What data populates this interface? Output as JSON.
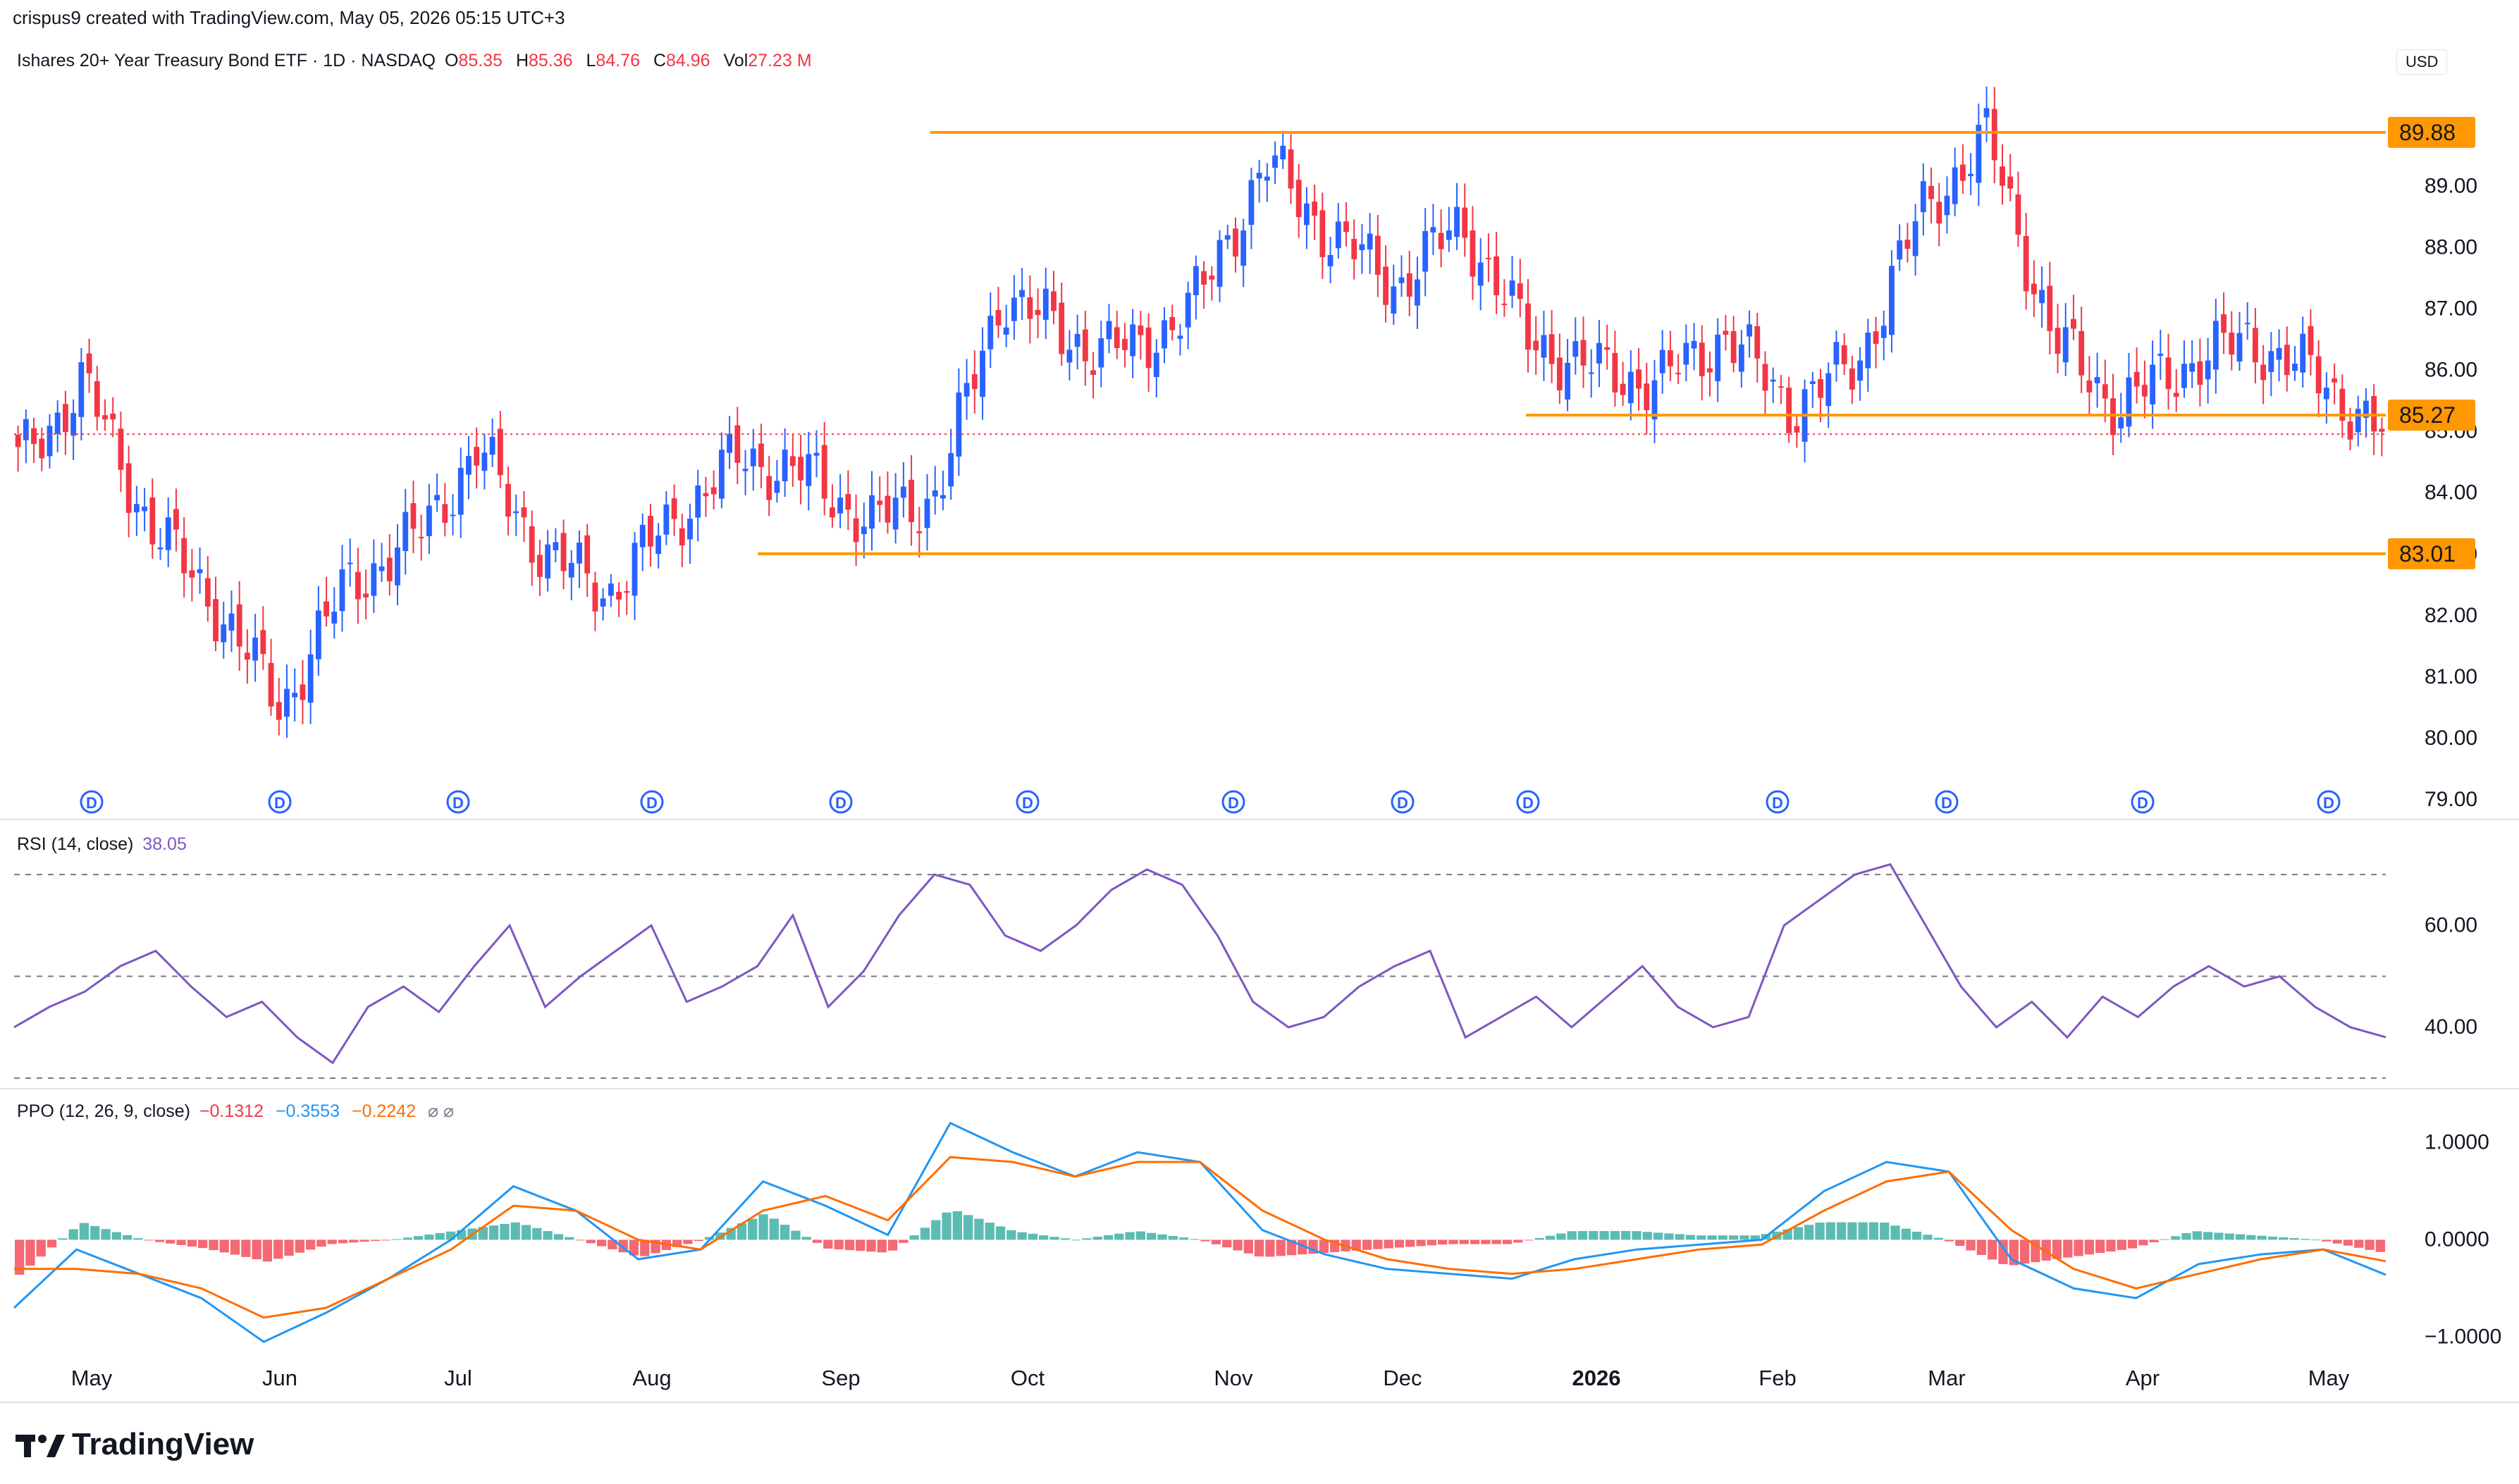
{
  "header": {
    "creator_line": "crispus9 created with TradingView.com, May 05, 2026 05:15 UTC+3"
  },
  "currency": "USD",
  "ohlc": {
    "symbol": "Ishares 20+ Year Treasury Bond ETF · 1D · NASDAQ",
    "O": "85.35",
    "H": "85.36",
    "L": "84.76",
    "C": "84.96",
    "Vol": "27.23 M"
  },
  "rsi_legend": {
    "label": "RSI (14, close)",
    "value": "38.05"
  },
  "ppo_legend": {
    "label": "PPO (12, 26, 9, close)",
    "v1": "−0.1312",
    "v2": "−0.3553",
    "v3": "−0.2242"
  },
  "brand": "TradingView",
  "colors": {
    "up": "#2962ff",
    "down": "#f23645",
    "level": "#ff9800",
    "rsi": "#7e57c2",
    "ppo": "#2196f3",
    "signal": "#ff6d00",
    "hist_up": "#26a69a",
    "hist_down": "#f23645"
  },
  "chart_data": [
    {
      "type": "candlestick",
      "price_axis_ticks": [
        "89.00",
        "88.00",
        "87.00",
        "86.00",
        "85.00",
        "84.00",
        "83.00",
        "82.00",
        "81.00",
        "80.00",
        "79.00"
      ],
      "ylim": [
        79,
        90.2
      ],
      "x_labels": [
        "May",
        "Jun",
        "Jul",
        "Aug",
        "Sep",
        "Oct",
        "Nov",
        "Dec",
        "2026",
        "Feb",
        "Mar",
        "Apr",
        "May"
      ],
      "horizontal_levels": [
        {
          "label": "89.88",
          "value": 89.88
        },
        {
          "label": "85.27",
          "value": 85.27
        },
        {
          "label": "83.01",
          "value": 83.01
        }
      ],
      "last_price_line": 84.96,
      "dividend_markers": [
        "D",
        "D",
        "D",
        "D",
        "D",
        "D",
        "D",
        "D",
        "D",
        "D",
        "D",
        "D",
        "D"
      ],
      "close_path": [
        84.5,
        85.8,
        83.5,
        82.2,
        80.5,
        82.5,
        83.2,
        84.7,
        83.0,
        82.4,
        83.6,
        84.6,
        84.3,
        83.5,
        84.0,
        87.3,
        86.5,
        86.3,
        87.2,
        89.4,
        88.2,
        87.4,
        88.4,
        86.5,
        86.0,
        85.8,
        86.6,
        85.4,
        86.1,
        88.6,
        89.8,
        86.5,
        85.4,
        86.1,
        86.5,
        85.9,
        84.96
      ]
    },
    {
      "type": "line",
      "name": "RSI (14, close)",
      "ylim": [
        30,
        75
      ],
      "axis_ticks": [
        "60.00",
        "40.00"
      ],
      "values": [
        40,
        44,
        47,
        52,
        55,
        48,
        42,
        45,
        38,
        33,
        44,
        48,
        43,
        52,
        60,
        44,
        50,
        55,
        60,
        45,
        48,
        52,
        62,
        44,
        51,
        62,
        70,
        68,
        58,
        55,
        60,
        67,
        71,
        68,
        58,
        45,
        40,
        42,
        48,
        52,
        55,
        38,
        42,
        46,
        40,
        46,
        52,
        44,
        40,
        42,
        60,
        65,
        70,
        72,
        60,
        48,
        40,
        45,
        38,
        46,
        42,
        48,
        52,
        48,
        50,
        44,
        40,
        38.05
      ]
    },
    {
      "type": "line",
      "name": "PPO (12, 26, 9, close)",
      "ylim": [
        -1.2,
        1.3
      ],
      "axis_ticks": [
        "1.0000",
        "0.0000",
        "−1.0000"
      ],
      "ppo": [
        -0.7,
        -0.1,
        -0.35,
        -0.6,
        -1.05,
        -0.75,
        -0.4,
        0.0,
        0.55,
        0.3,
        -0.2,
        -0.1,
        0.6,
        0.35,
        0.05,
        1.2,
        0.9,
        0.65,
        0.9,
        0.8,
        0.1,
        -0.15,
        -0.3,
        -0.35,
        -0.4,
        -0.2,
        -0.1,
        -0.05,
        0.0,
        0.5,
        0.8,
        0.7,
        -0.2,
        -0.5,
        -0.6,
        -0.25,
        -0.15,
        -0.1,
        -0.36
      ],
      "signal": [
        -0.3,
        -0.3,
        -0.35,
        -0.5,
        -0.8,
        -0.7,
        -0.4,
        -0.1,
        0.35,
        0.3,
        0.0,
        -0.1,
        0.3,
        0.45,
        0.2,
        0.85,
        0.8,
        0.65,
        0.8,
        0.8,
        0.3,
        0.0,
        -0.2,
        -0.3,
        -0.35,
        -0.3,
        -0.2,
        -0.1,
        -0.05,
        0.3,
        0.6,
        0.7,
        0.1,
        -0.3,
        -0.5,
        -0.35,
        -0.2,
        -0.1,
        -0.22
      ]
    }
  ]
}
